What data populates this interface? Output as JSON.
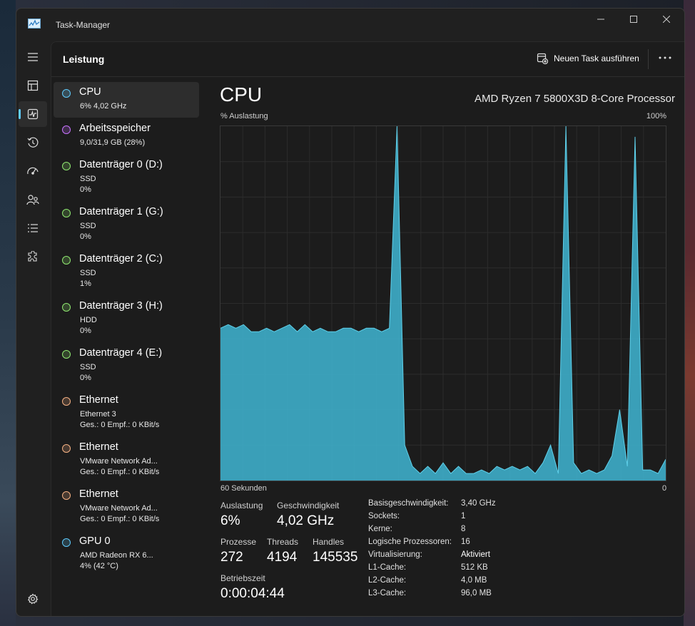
{
  "window": {
    "title": "Task-Manager"
  },
  "header": {
    "title": "Leistung",
    "run_task_label": "Neuen Task ausführen"
  },
  "sidebar": {
    "items": [
      {
        "title": "CPU",
        "line1": "6%  4,02 GHz",
        "line2": "",
        "dot_color": "#60cdff"
      },
      {
        "title": "Arbeitsspeicher",
        "line1": "9,0/31,9 GB (28%)",
        "line2": "",
        "dot_color": "#c872ff"
      },
      {
        "title": "Datenträger 0 (D:)",
        "line1": "SSD",
        "line2": "0%",
        "dot_color": "#8fe870"
      },
      {
        "title": "Datenträger 1 (G:)",
        "line1": "SSD",
        "line2": "0%",
        "dot_color": "#8fe870"
      },
      {
        "title": "Datenträger 2 (C:)",
        "line1": "SSD",
        "line2": "1%",
        "dot_color": "#8fe870"
      },
      {
        "title": "Datenträger 3 (H:)",
        "line1": "HDD",
        "line2": "0%",
        "dot_color": "#8fe870"
      },
      {
        "title": "Datenträger 4 (E:)",
        "line1": "SSD",
        "line2": "0%",
        "dot_color": "#8fe870"
      },
      {
        "title": "Ethernet",
        "line1": "Ethernet 3",
        "line2": "Ges.: 0  Empf.: 0 KBit/s",
        "dot_color": "#f5b183"
      },
      {
        "title": "Ethernet",
        "line1": "VMware Network Ad...",
        "line2": "Ges.: 0  Empf.: 0 KBit/s",
        "dot_color": "#f5b183"
      },
      {
        "title": "Ethernet",
        "line1": "VMware Network Ad...",
        "line2": "Ges.: 0  Empf.: 0 KBit/s",
        "dot_color": "#f5b183"
      },
      {
        "title": "GPU 0",
        "line1": "AMD Radeon RX 6...",
        "line2": "4%  (42 °C)",
        "dot_color": "#60cdff"
      }
    ]
  },
  "main": {
    "title": "CPU",
    "model": "AMD Ryzen 7 5800X3D 8-Core Processor",
    "y_label": "% Auslastung",
    "y_max_label": "100%",
    "x_left_label": "60 Sekunden",
    "x_right_label": "0",
    "stats": {
      "auslastung_label": "Auslastung",
      "auslastung": "6%",
      "geschwindigkeit_label": "Geschwindigkeit",
      "geschwindigkeit": "4,02 GHz",
      "prozesse_label": "Prozesse",
      "prozesse": "272",
      "threads_label": "Threads",
      "threads": "4194",
      "handles_label": "Handles",
      "handles": "145535",
      "betriebszeit_label": "Betriebszeit",
      "betriebszeit": "0:00:04:44"
    },
    "details": [
      {
        "k": "Basisgeschwindigkeit:",
        "v": "3,40 GHz",
        "bold": false
      },
      {
        "k": "Sockets:",
        "v": "1",
        "bold": false
      },
      {
        "k": "Kerne:",
        "v": "8",
        "bold": false
      },
      {
        "k": "Logische Prozessoren:",
        "v": "16",
        "bold": false
      },
      {
        "k": "Virtualisierung:",
        "v": "Aktiviert",
        "bold": true
      },
      {
        "k": "L1-Cache:",
        "v": "512 KB",
        "bold": false
      },
      {
        "k": "L2-Cache:",
        "v": "4,0 MB",
        "bold": false
      },
      {
        "k": "L3-Cache:",
        "v": "96,0 MB",
        "bold": false
      }
    ]
  },
  "chart_data": {
    "type": "area",
    "x_range": [
      60,
      0
    ],
    "ylim": [
      0,
      100
    ],
    "grid": true,
    "color": "#3fb6d3",
    "values": [
      43,
      44,
      43,
      44,
      42,
      42,
      43,
      42,
      43,
      44,
      42,
      44,
      42,
      43,
      42,
      42,
      43,
      43,
      42,
      43,
      43,
      42,
      43,
      100,
      10,
      4,
      2,
      4,
      2,
      5,
      2,
      4,
      2,
      2,
      3,
      2,
      4,
      3,
      4,
      3,
      4,
      2,
      5,
      10,
      2,
      100,
      5,
      2,
      3,
      2,
      3,
      7,
      20,
      4,
      97,
      3,
      3,
      2,
      6
    ]
  },
  "colors": {
    "accent": "#60cdff",
    "graph_fill": "#3fb6d3"
  }
}
